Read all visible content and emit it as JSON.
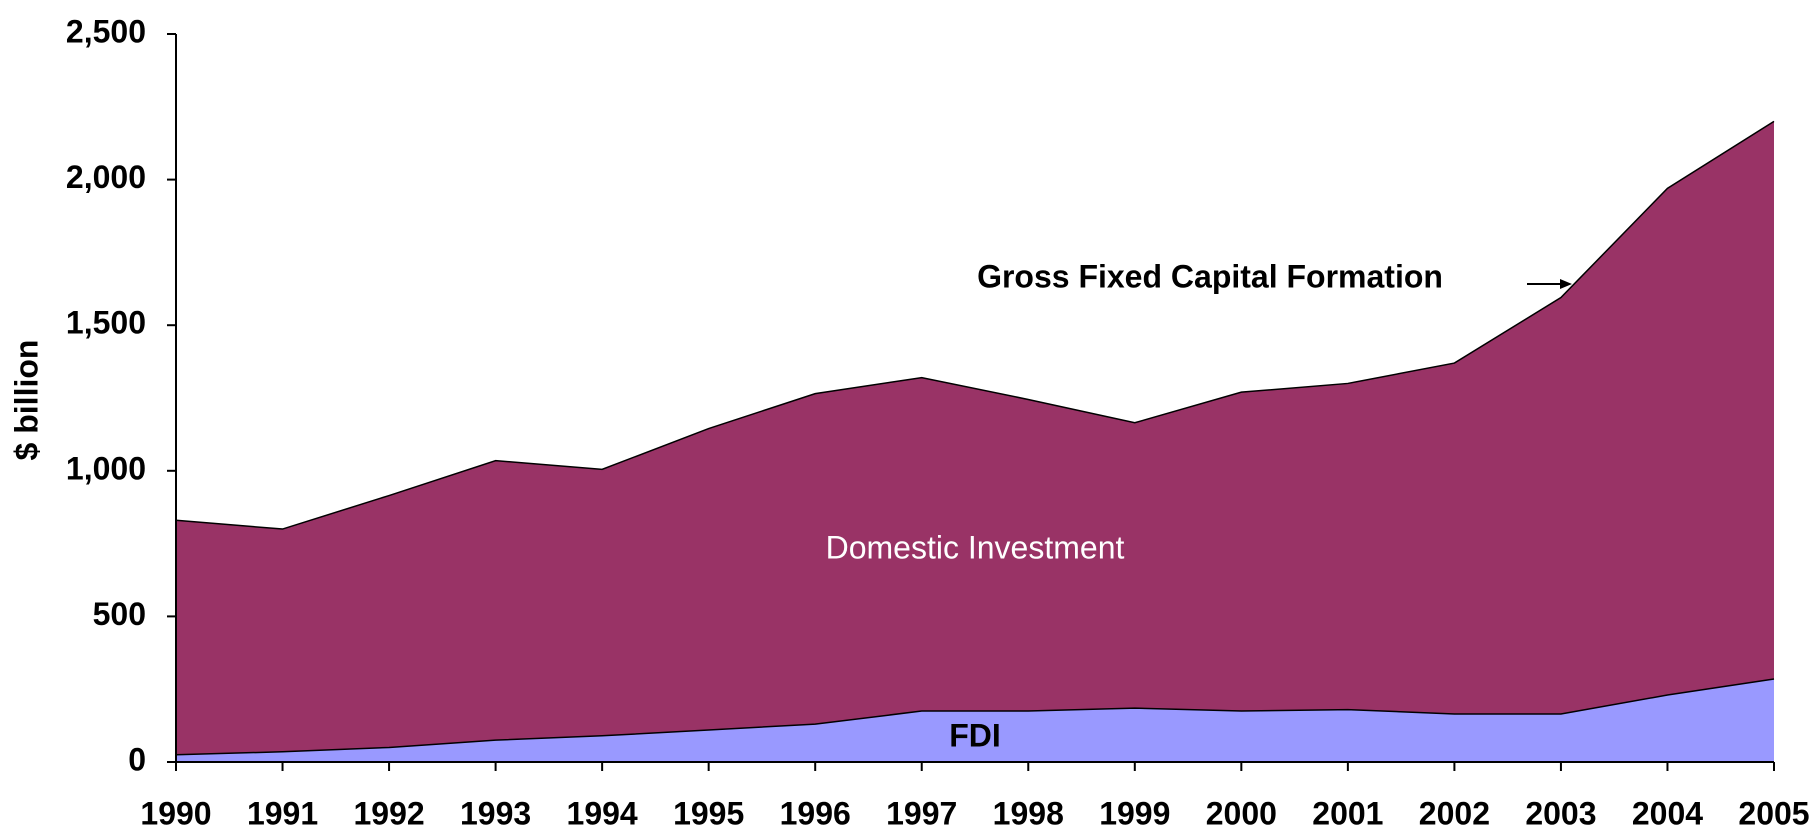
{
  "chart_data": {
    "type": "stacked_area",
    "y_label": "$ billion",
    "x": [
      1990,
      1991,
      1992,
      1993,
      1994,
      1995,
      1996,
      1997,
      1998,
      1999,
      2000,
      2001,
      2002,
      2003,
      2004,
      2005
    ],
    "xlim": [
      1990,
      2005
    ],
    "xticks": [
      1990,
      1991,
      1992,
      1993,
      1994,
      1995,
      1996,
      1997,
      1998,
      1999,
      2000,
      2001,
      2002,
      2003,
      2004,
      2005
    ],
    "ylim": [
      0,
      2500
    ],
    "yticks": [
      0,
      500,
      {
        "value": 1000,
        "label": "1,000"
      },
      {
        "value": 1500,
        "label": "1,500"
      },
      {
        "value": 2000,
        "label": "2,000"
      },
      {
        "value": 2500,
        "label": "2,500"
      }
    ],
    "series": [
      {
        "name": "FDI",
        "color": "#9999ff",
        "values": [
          25,
          35,
          50,
          75,
          90,
          110,
          130,
          175,
          175,
          185,
          175,
          180,
          165,
          165,
          230,
          285
        ]
      },
      {
        "name": "Domestic Investment",
        "color": "#993366",
        "values": [
          805,
          765,
          865,
          960,
          915,
          1035,
          1135,
          1145,
          1070,
          980,
          1095,
          1120,
          1205,
          1430,
          1740,
          1915
        ]
      }
    ],
    "annotations": [
      "Gross Fixed Capital Formation"
    ]
  }
}
